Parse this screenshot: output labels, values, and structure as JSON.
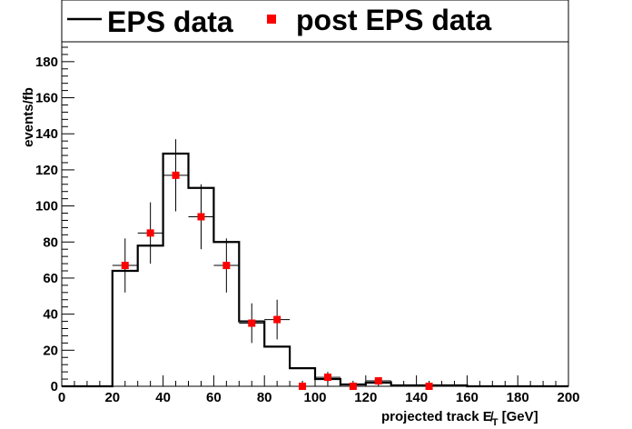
{
  "chart_data": {
    "type": "histogram",
    "xlabel": "projected track  E̸",
    "xlabel_sub": "T",
    "xlabel_unit": " [GeV]",
    "ylabel": "events/fb",
    "xlim": [
      0,
      200
    ],
    "ylim": [
      0,
      190
    ],
    "x_ticks": [
      0,
      20,
      40,
      60,
      80,
      100,
      120,
      140,
      160,
      180,
      200
    ],
    "y_ticks": [
      0,
      20,
      40,
      60,
      80,
      100,
      120,
      140,
      160,
      180
    ],
    "grid": false,
    "legend_position": "top",
    "series": [
      {
        "name": "EPS data",
        "style": "step",
        "color": "#000000",
        "bin_edges": [
          0,
          10,
          20,
          30,
          40,
          50,
          60,
          70,
          80,
          90,
          100,
          110,
          120,
          130,
          140,
          150,
          160,
          170,
          180,
          190,
          200
        ],
        "values": [
          0,
          0,
          64,
          78,
          129,
          110,
          80,
          36,
          22,
          10,
          4,
          1,
          2,
          0.5,
          0.5,
          0.5,
          0,
          0,
          0,
          0
        ]
      },
      {
        "name": "post EPS data",
        "style": "markers",
        "color": "#ff0000",
        "points": [
          {
            "x": 25,
            "y": 67,
            "err": 15
          },
          {
            "x": 35,
            "y": 85,
            "err": 17
          },
          {
            "x": 45,
            "y": 117,
            "err": 20
          },
          {
            "x": 55,
            "y": 94,
            "err": 18
          },
          {
            "x": 65,
            "y": 67,
            "err": 15
          },
          {
            "x": 75,
            "y": 35,
            "err": 11
          },
          {
            "x": 85,
            "y": 37,
            "err": 11
          },
          {
            "x": 95,
            "y": 0,
            "err": 0
          },
          {
            "x": 105,
            "y": 5,
            "err": 3
          },
          {
            "x": 115,
            "y": 0,
            "err": 0
          },
          {
            "x": 125,
            "y": 3,
            "err": 2
          },
          {
            "x": 145,
            "y": 0,
            "err": 0
          }
        ]
      }
    ]
  }
}
